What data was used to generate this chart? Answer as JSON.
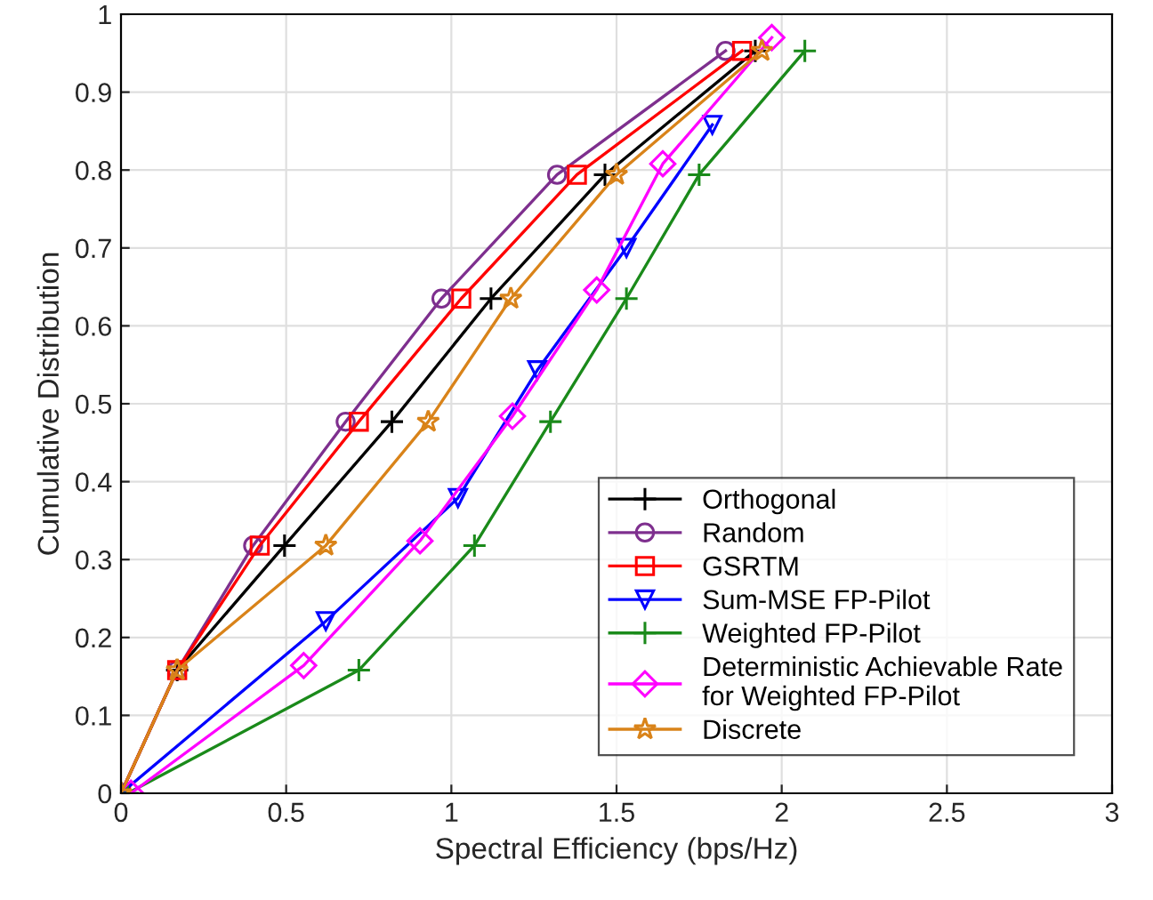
{
  "chart_data": {
    "type": "line",
    "xlabel": "Spectral Efficiency (bps/Hz)",
    "ylabel": "Cumulative Distribution",
    "xlim": [
      0,
      3
    ],
    "ylim": [
      0,
      1
    ],
    "xticks": [
      0,
      0.5,
      1,
      1.5,
      2,
      2.5,
      3
    ],
    "yticks": [
      0,
      0.1,
      0.2,
      0.3,
      0.4,
      0.5,
      0.6,
      0.7,
      0.8,
      0.9,
      1
    ],
    "grid": true,
    "legend": "bottom right",
    "line_style": "solid",
    "series": [
      {
        "name": "Orthogonal",
        "color": "#000000",
        "marker": "cross",
        "x": [
          0,
          0.17,
          0.495,
          0.82,
          1.12,
          1.465,
          1.92
        ],
        "values": [
          0,
          0.158,
          0.318,
          0.477,
          0.635,
          0.794,
          0.953
        ]
      },
      {
        "name": "Random",
        "color": "#7e2f8e",
        "marker": "circle",
        "x": [
          0,
          0.17,
          0.4,
          0.68,
          0.97,
          1.32,
          1.83
        ],
        "values": [
          0,
          0.158,
          0.318,
          0.477,
          0.635,
          0.794,
          0.953
        ]
      },
      {
        "name": "GSRTM",
        "color": "#ff0000",
        "marker": "square",
        "x": [
          0,
          0.17,
          0.42,
          0.72,
          1.03,
          1.38,
          1.88
        ],
        "values": [
          0,
          0.158,
          0.318,
          0.477,
          0.635,
          0.794,
          0.953
        ]
      },
      {
        "name": "Sum-MSE FP-Pilot",
        "color": "#0000ff",
        "marker": "triangle",
        "x": [
          0,
          0.62,
          1.02,
          1.26,
          1.53,
          1.79
        ],
        "values": [
          0,
          0.221,
          0.379,
          0.543,
          0.7,
          0.858
        ]
      },
      {
        "name": "Weighted FP-Pilot",
        "color": "#1a8a1a",
        "marker": "cross",
        "x": [
          0.02,
          0.72,
          1.07,
          1.3,
          1.53,
          1.75,
          2.07
        ],
        "values": [
          0,
          0.158,
          0.318,
          0.477,
          0.635,
          0.794,
          0.953
        ]
      },
      {
        "name": "Deterministic Achievable Rate\nfor Weighted FP-Pilot",
        "color": "#ff00ff",
        "marker": "diamond",
        "x": [
          0.03,
          0.553,
          0.905,
          1.185,
          1.44,
          1.64,
          1.97
        ],
        "values": [
          0,
          0.164,
          0.324,
          0.484,
          0.646,
          0.808,
          0.97
        ]
      },
      {
        "name": "Discrete",
        "color": "#d98319",
        "marker": "star",
        "x": [
          0,
          0.17,
          0.62,
          0.93,
          1.18,
          1.5,
          1.94
        ],
        "values": [
          0,
          0.158,
          0.318,
          0.477,
          0.635,
          0.794,
          0.953
        ]
      }
    ]
  }
}
